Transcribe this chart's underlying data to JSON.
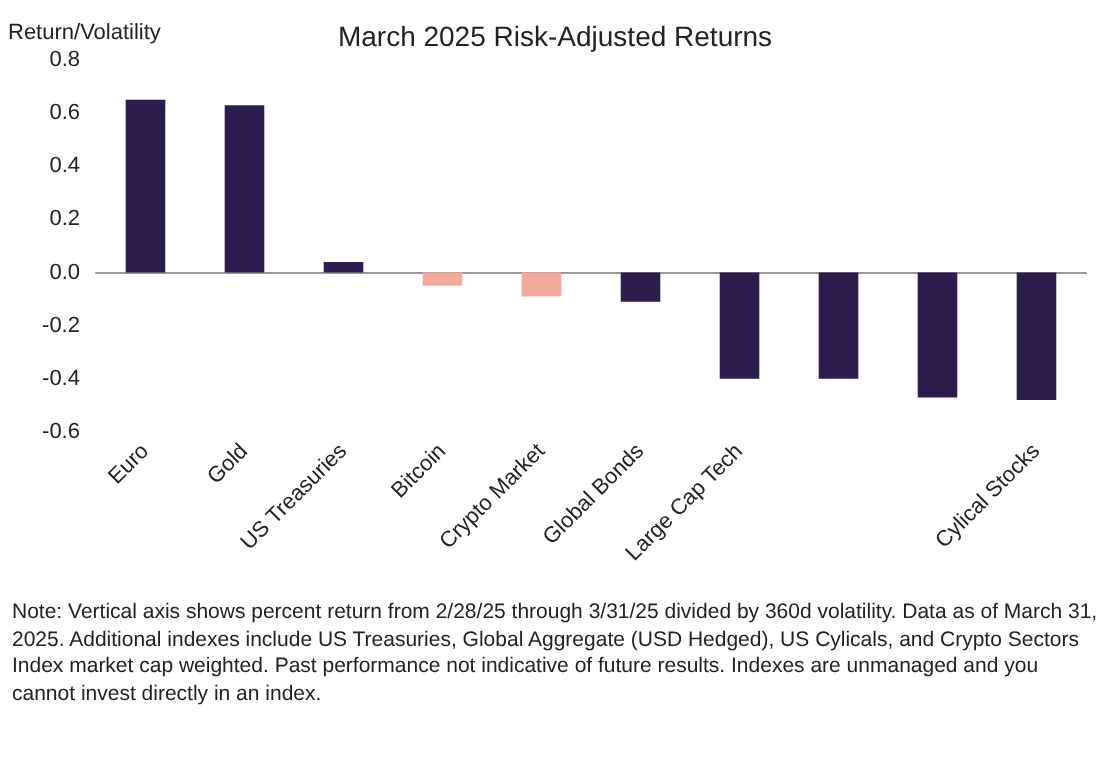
{
  "chart_data": {
    "type": "bar",
    "title": "March 2025 Risk-Adjusted Returns",
    "ylabel": "Return/Volatility",
    "categories": [
      "Euro",
      "Gold",
      "US Treasuries",
      "Bitcoin",
      "Crypto Market",
      "Global Bonds",
      "Large Cap Tech",
      null,
      null,
      "Cylical Stocks"
    ],
    "values": [
      0.65,
      0.63,
      0.04,
      -0.05,
      -0.09,
      -0.11,
      -0.4,
      -0.4,
      -0.47,
      -0.48
    ],
    "colors": [
      "#2b1d4e",
      "#2b1d4e",
      "#2b1d4e",
      "#f5a99b",
      "#f5a99b",
      "#2b1d4e",
      "#2b1d4e",
      "#2b1d4e",
      "#2b1d4e",
      "#2b1d4e"
    ],
    "ylim": [
      -0.6,
      0.8
    ],
    "yticks": [
      -0.6,
      -0.4,
      -0.2,
      {
        "value": 0,
        "label": "0.0"
      },
      0.2,
      0.4,
      0.6,
      0.8
    ],
    "annotations": [
      "Note: Vertical axis shows percent return from 2/28/25 through 3/31/25 divided by 360d volatility. Data as of March 31, 2025. Additional indexes include US Treasuries, Global Aggregate (USD Hedged), US Cylicals, and Crypto Sectors Index market cap weighted. Past performance not indicative of future results. Indexes are unmanaged and you cannot invest directly in an index."
    ]
  }
}
